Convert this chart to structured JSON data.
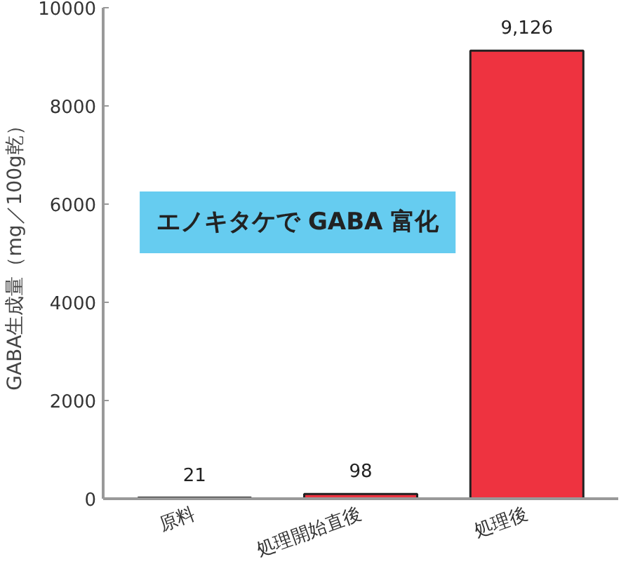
{
  "chart_data": {
    "type": "bar",
    "ylabel": "GABA生成量（mg／100g乾）",
    "categories": [
      "原料",
      "処理開始直後",
      "処理後"
    ],
    "values": [
      21,
      98,
      9126
    ],
    "color": "#ee3340",
    "value_labels": [
      "21",
      "98",
      "9,126"
    ],
    "ylim": [
      0,
      10000
    ],
    "yticks": [
      0,
      2000,
      4000,
      6000,
      8000,
      10000
    ],
    "grid": false,
    "annotations": [
      "エノキタケで GABA 富化"
    ]
  }
}
